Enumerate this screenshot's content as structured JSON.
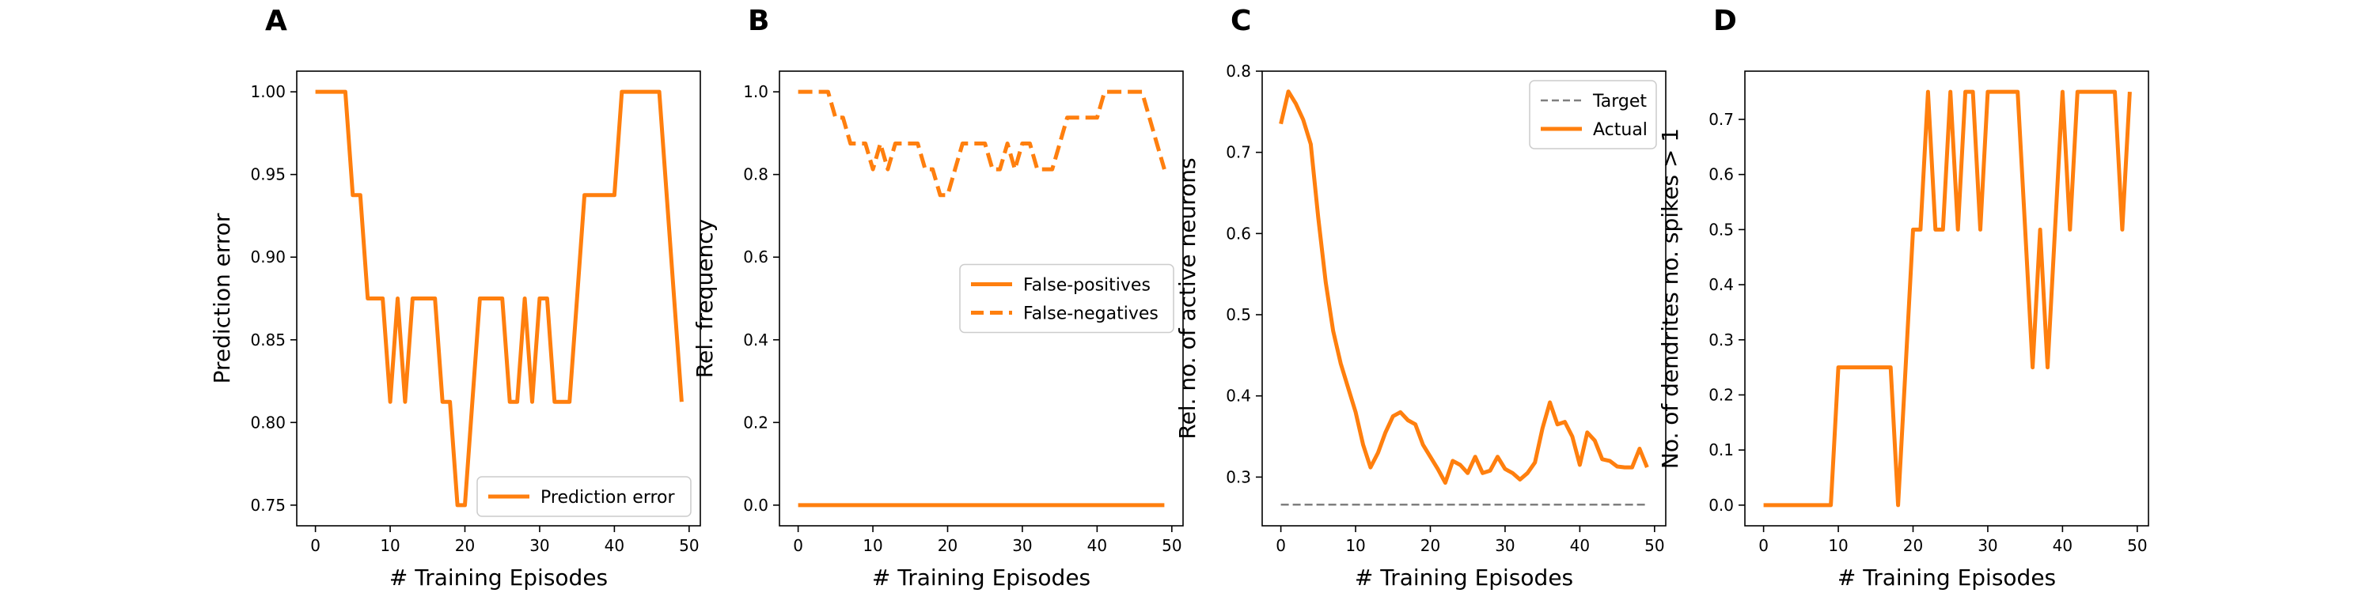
{
  "chart_data": [
    {
      "type": "line",
      "panel_label": "A",
      "xlabel": "# Training Episodes",
      "ylabel": "Prediction error",
      "xlim": [
        -2.5,
        51.5
      ],
      "ylim": [
        0.7375,
        1.0125
      ],
      "xticks": [
        0,
        10,
        20,
        30,
        40,
        50
      ],
      "yticks": [
        0.75,
        0.8,
        0.85,
        0.9,
        0.95,
        1.0
      ],
      "ytick_format": 2,
      "legend": "lower-right",
      "series": [
        {
          "name": "Prediction error",
          "color": "#ff7f0e",
          "style": "solid",
          "x": [
            0,
            1,
            2,
            3,
            4,
            5,
            6,
            7,
            8,
            9,
            10,
            11,
            12,
            13,
            14,
            15,
            16,
            17,
            18,
            19,
            20,
            21,
            22,
            23,
            24,
            25,
            26,
            27,
            28,
            29,
            30,
            31,
            32,
            33,
            34,
            35,
            36,
            37,
            38,
            39,
            40,
            41,
            42,
            43,
            44,
            45,
            46,
            47,
            48,
            49
          ],
          "y": [
            1.0,
            1.0,
            1.0,
            1.0,
            1.0,
            0.9375,
            0.9375,
            0.875,
            0.875,
            0.875,
            0.8125,
            0.875,
            0.8125,
            0.875,
            0.875,
            0.875,
            0.875,
            0.8125,
            0.8125,
            0.75,
            0.75,
            0.8125,
            0.875,
            0.875,
            0.875,
            0.875,
            0.8125,
            0.8125,
            0.875,
            0.8125,
            0.875,
            0.875,
            0.8125,
            0.8125,
            0.8125,
            0.875,
            0.9375,
            0.9375,
            0.9375,
            0.9375,
            0.9375,
            1.0,
            1.0,
            1.0,
            1.0,
            1.0,
            1.0,
            0.9375,
            0.875,
            0.8125
          ]
        }
      ]
    },
    {
      "type": "line",
      "panel_label": "B",
      "xlabel": "# Training Episodes",
      "ylabel": "Rel. frequency",
      "xlim": [
        -2.5,
        51.5
      ],
      "ylim": [
        -0.05,
        1.05
      ],
      "xticks": [
        0,
        10,
        20,
        30,
        40,
        50
      ],
      "yticks": [
        0.0,
        0.2,
        0.4,
        0.6,
        0.8,
        1.0
      ],
      "ytick_format": 1,
      "legend": "center-right",
      "series": [
        {
          "name": "False-positives",
          "color": "#ff7f0e",
          "style": "solid",
          "x": [
            0,
            49
          ],
          "y": [
            0.0,
            0.0
          ]
        },
        {
          "name": "False-negatives",
          "color": "#ff7f0e",
          "style": "dashed",
          "x": [
            0,
            1,
            2,
            3,
            4,
            5,
            6,
            7,
            8,
            9,
            10,
            11,
            12,
            13,
            14,
            15,
            16,
            17,
            18,
            19,
            20,
            21,
            22,
            23,
            24,
            25,
            26,
            27,
            28,
            29,
            30,
            31,
            32,
            33,
            34,
            35,
            36,
            37,
            38,
            39,
            40,
            41,
            42,
            43,
            44,
            45,
            46,
            47,
            48,
            49
          ],
          "y": [
            1.0,
            1.0,
            1.0,
            1.0,
            1.0,
            0.9375,
            0.9375,
            0.875,
            0.875,
            0.875,
            0.8125,
            0.875,
            0.8125,
            0.875,
            0.875,
            0.875,
            0.875,
            0.8125,
            0.8125,
            0.75,
            0.75,
            0.8125,
            0.875,
            0.875,
            0.875,
            0.875,
            0.8125,
            0.8125,
            0.875,
            0.8125,
            0.875,
            0.875,
            0.8125,
            0.8125,
            0.8125,
            0.875,
            0.9375,
            0.9375,
            0.9375,
            0.9375,
            0.9375,
            1.0,
            1.0,
            1.0,
            1.0,
            1.0,
            1.0,
            0.9375,
            0.875,
            0.8125
          ]
        }
      ]
    },
    {
      "type": "line",
      "panel_label": "C",
      "xlabel": "# Training Episodes",
      "ylabel": "Rel. no. of active neurons",
      "xlim": [
        -2.5,
        51.5
      ],
      "ylim": [
        0.24,
        0.8
      ],
      "xticks": [
        0,
        10,
        20,
        30,
        40,
        50
      ],
      "yticks": [
        0.3,
        0.4,
        0.5,
        0.6,
        0.7,
        0.8
      ],
      "ytick_format": 1,
      "legend": "top-right",
      "series": [
        {
          "name": "Target",
          "color": "#7f7f7f",
          "style": "dashed-thin",
          "x": [
            0,
            49
          ],
          "y": [
            0.266,
            0.266
          ]
        },
        {
          "name": "Actual",
          "color": "#ff7f0e",
          "style": "solid",
          "x": [
            0,
            1,
            2,
            3,
            4,
            5,
            6,
            7,
            8,
            9,
            10,
            11,
            12,
            13,
            14,
            15,
            16,
            17,
            18,
            19,
            20,
            21,
            22,
            23,
            24,
            25,
            26,
            27,
            28,
            29,
            30,
            31,
            32,
            33,
            34,
            35,
            36,
            37,
            38,
            39,
            40,
            41,
            42,
            43,
            44,
            45,
            46,
            47,
            48,
            49
          ],
          "y": [
            0.735,
            0.775,
            0.76,
            0.74,
            0.71,
            0.62,
            0.54,
            0.48,
            0.44,
            0.41,
            0.38,
            0.34,
            0.312,
            0.33,
            0.355,
            0.375,
            0.38,
            0.37,
            0.365,
            0.34,
            0.325,
            0.31,
            0.293,
            0.32,
            0.315,
            0.305,
            0.325,
            0.305,
            0.308,
            0.325,
            0.31,
            0.305,
            0.297,
            0.305,
            0.318,
            0.36,
            0.392,
            0.365,
            0.368,
            0.35,
            0.315,
            0.355,
            0.345,
            0.322,
            0.32,
            0.313,
            0.312,
            0.312,
            0.335,
            0.312
          ]
        }
      ]
    },
    {
      "type": "line",
      "panel_label": "D",
      "xlabel": "# Training Episodes",
      "ylabel": "No. of dendrites no. spikes > 1",
      "xlim": [
        -2.5,
        51.5
      ],
      "ylim": [
        -0.0375,
        0.7875
      ],
      "xticks": [
        0,
        10,
        20,
        30,
        40,
        50
      ],
      "yticks": [
        0.0,
        0.1,
        0.2,
        0.3,
        0.4,
        0.5,
        0.6,
        0.7
      ],
      "ytick_format": 1,
      "legend": "none",
      "series": [
        {
          "name": "",
          "color": "#ff7f0e",
          "style": "solid",
          "x": [
            0,
            1,
            2,
            3,
            4,
            5,
            6,
            7,
            8,
            9,
            10,
            11,
            12,
            13,
            14,
            15,
            16,
            17,
            18,
            19,
            20,
            21,
            22,
            23,
            24,
            25,
            26,
            27,
            28,
            29,
            30,
            31,
            32,
            33,
            34,
            35,
            36,
            37,
            38,
            39,
            40,
            41,
            42,
            43,
            44,
            45,
            46,
            47,
            48,
            49
          ],
          "y": [
            0,
            0,
            0,
            0,
            0,
            0,
            0,
            0,
            0,
            0,
            0.25,
            0.25,
            0.25,
            0.25,
            0.25,
            0.25,
            0.25,
            0.25,
            0,
            0.25,
            0.5,
            0.5,
            0.75,
            0.5,
            0.5,
            0.75,
            0.5,
            0.75,
            0.75,
            0.5,
            0.75,
            0.75,
            0.75,
            0.75,
            0.75,
            0.5,
            0.25,
            0.5,
            0.25,
            0.5,
            0.75,
            0.5,
            0.75,
            0.75,
            0.75,
            0.75,
            0.75,
            0.75,
            0.5,
            0.75
          ]
        }
      ]
    }
  ]
}
